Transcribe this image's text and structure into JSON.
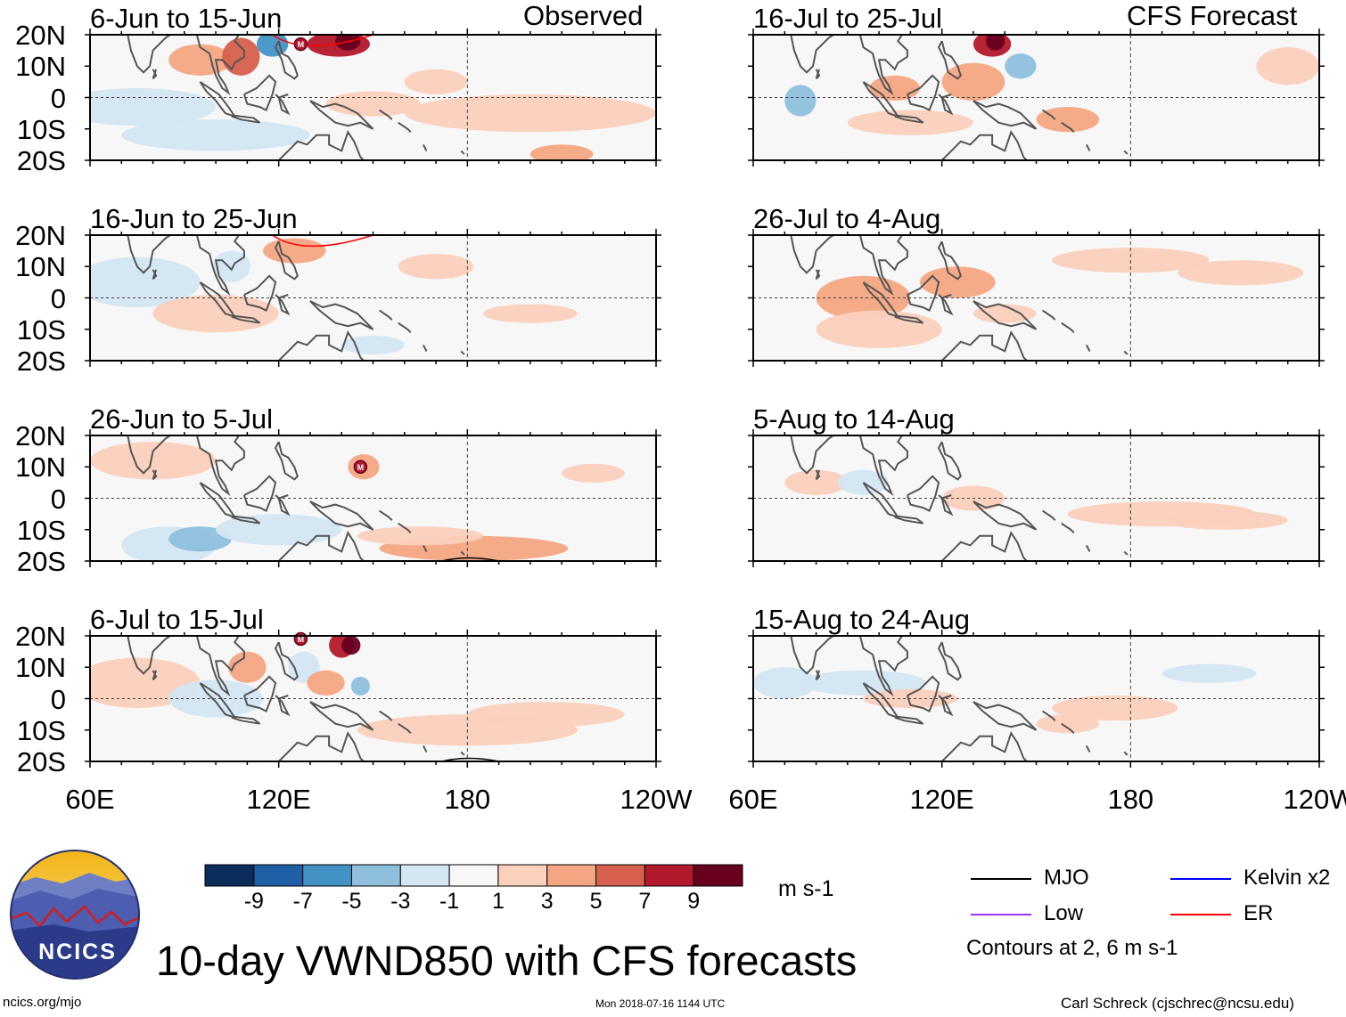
{
  "chart_data": {
    "type": "heatmap",
    "variable": "VWND850",
    "title": "10-day VWND850 with CFS forecasts",
    "units": "m s-1",
    "xlim": [
      "60E",
      "120W"
    ],
    "ylim": [
      "20S",
      "20N"
    ],
    "yticks": [
      "20N",
      "10N",
      "0",
      "10S",
      "20S"
    ],
    "xticks": [
      "60E",
      "120E",
      "180",
      "120W"
    ],
    "column_headers": {
      "left": "Observed",
      "right": "CFS Forecast"
    },
    "panels": [
      {
        "period": "6-Jun to 15-Jun",
        "column": "Observed",
        "mjo_marks": 1
      },
      {
        "period": "16-Jun to 25-Jun",
        "column": "Observed",
        "mjo_marks": 0
      },
      {
        "period": "26-Jun to 5-Jul",
        "column": "Observed",
        "mjo_marks": 1
      },
      {
        "period": "6-Jul to 15-Jul",
        "column": "Observed",
        "mjo_marks": 1
      },
      {
        "period": "16-Jul to 25-Jul",
        "column": "CFS Forecast",
        "mjo_marks": 0
      },
      {
        "period": "26-Jul to 4-Aug",
        "column": "CFS Forecast",
        "mjo_marks": 0
      },
      {
        "period": "5-Aug to 14-Aug",
        "column": "CFS Forecast",
        "mjo_marks": 0
      },
      {
        "period": "15-Aug to 24-Aug",
        "column": "CFS Forecast",
        "mjo_marks": 0
      }
    ],
    "colorbar": {
      "labels": [
        "-9",
        "-7",
        "-5",
        "-3",
        "-1",
        "1",
        "3",
        "5",
        "7",
        "9"
      ],
      "colors": [
        "#0b2d5c",
        "#1f5fa6",
        "#4292c6",
        "#8ec0de",
        "#d3e6f2",
        "#f7f7f7",
        "#fbd0bd",
        "#f4a582",
        "#d6604d",
        "#b2182b",
        "#67001f"
      ]
    },
    "contour_legend": [
      {
        "label": "MJO",
        "color": "#000000"
      },
      {
        "label": "Kelvin x2",
        "color": "#0000ff"
      },
      {
        "label": "Low",
        "color": "#9933ff"
      },
      {
        "label": "ER",
        "color": "#ff0000"
      }
    ],
    "contour_note": "Contours at 2, 6 m s-1"
  },
  "logo": {
    "text": "NCICS"
  },
  "footer": {
    "left": "ncics.org/mjo",
    "center": "Mon 2018-07-16 1144 UTC",
    "right": "Carl Schreck (cjschrec@ncsu.edu)"
  },
  "mjo_marker_letter": "M"
}
